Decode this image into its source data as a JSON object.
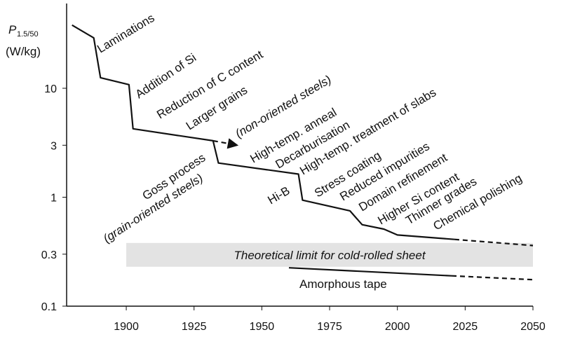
{
  "chart_data": {
    "type": "line",
    "y_label_symbol": "P",
    "y_label_subscript": "1.5/50",
    "y_label_unit": "(W/kg)",
    "log_y": true,
    "xlim": [
      1878,
      2050
    ],
    "ylim": [
      0.1,
      60
    ],
    "xticks": [
      1900,
      1925,
      1950,
      1975,
      2000,
      2025,
      2050
    ],
    "yticks": [
      0.1,
      0.3,
      1,
      3,
      10
    ],
    "series": [
      {
        "color": "#111111",
        "dashed": false,
        "x": [
          1880,
          1888,
          1890.5,
          1901,
          1902.5,
          1932,
          1934,
          1963.5,
          1965,
          1982.5,
          1987,
          1995,
          2000,
          2021
        ],
        "values": [
          38,
          29,
          12.5,
          10.8,
          4.25,
          3.3,
          2.06,
          1.63,
          0.94,
          0.75,
          0.56,
          0.51,
          0.45,
          0.41
        ]
      },
      {
        "color": "#111111",
        "dashed": true,
        "x": [
          2021,
          2050
        ],
        "values": [
          0.41,
          0.36
        ]
      },
      {
        "color": "#111111",
        "dashed": true,
        "arrow": true,
        "x": [
          1932,
          1941
        ],
        "values": [
          3.3,
          3.0
        ]
      },
      {
        "color": "#111111",
        "dashed": false,
        "x": [
          1960,
          2020
        ],
        "values": [
          0.225,
          0.19
        ]
      },
      {
        "color": "#111111",
        "dashed": true,
        "x": [
          2020,
          2050
        ],
        "values": [
          0.19,
          0.175
        ]
      }
    ],
    "band": {
      "color": "#e3e3e3",
      "x": [
        1900,
        2050
      ],
      "values": [
        0.23,
        0.38
      ],
      "label": "Theoretical limit for cold-rolled sheet"
    },
    "annotations": [
      {
        "text": "Laminations",
        "italic": false
      },
      {
        "text": "Addition of Si",
        "italic": false
      },
      {
        "text": "Reduction of C content",
        "italic": false
      },
      {
        "text": "Larger grains",
        "italic": false
      },
      {
        "text": "(non-oriented steels)",
        "italic": true
      },
      {
        "text": "High-temp. anneal",
        "italic": false
      },
      {
        "text": "Decarburisation",
        "italic": false
      },
      {
        "text": "High-temp. treatment of slabs",
        "italic": false
      },
      {
        "text": "Goss process",
        "italic": false
      },
      {
        "text": "(grain-oriented steels)",
        "italic": true
      },
      {
        "text": "Hi-B",
        "italic": false
      },
      {
        "text": "Stress coating",
        "italic": false
      },
      {
        "text": "Reduced impurities",
        "italic": false
      },
      {
        "text": "Domain refinement",
        "italic": false
      },
      {
        "text": "Higher Si content",
        "italic": false
      },
      {
        "text": "Thinner grades",
        "italic": false
      },
      {
        "text": "Chemical polishing",
        "italic": false
      },
      {
        "text": "Amorphous tape",
        "italic": false
      }
    ]
  }
}
